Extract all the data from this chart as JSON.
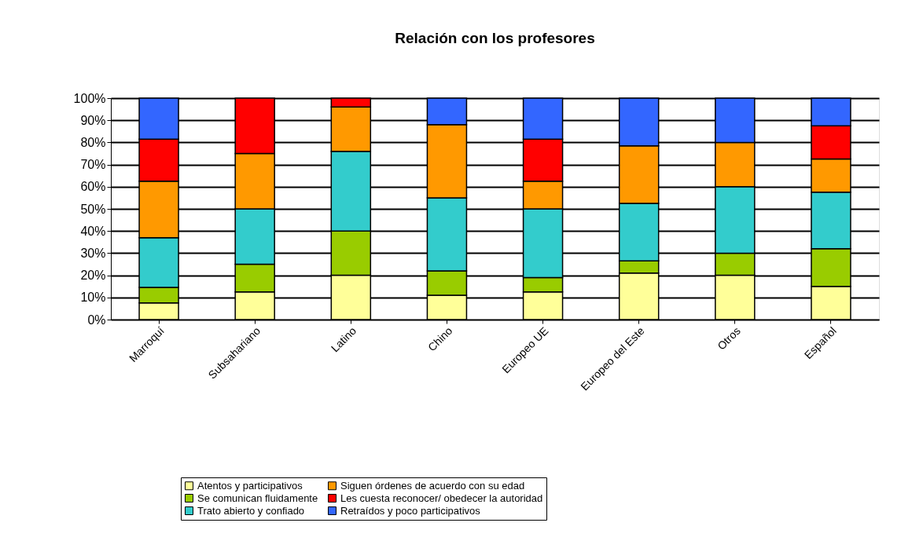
{
  "chart_data": {
    "type": "bar",
    "stacked": true,
    "title": "Relación con los profesores",
    "categories": [
      "Marroquí",
      "Subsahariano",
      "Latino",
      "Chino",
      "Europeo UE",
      "Europeo del Este",
      "Otros",
      "Español"
    ],
    "series": [
      {
        "name": "Atentos y participativos",
        "color": "#ffff99",
        "values": [
          7.5,
          12.5,
          20,
          11,
          12.5,
          21,
          20,
          15
        ]
      },
      {
        "name": "Se comunican fluidamente",
        "color": "#99cc00",
        "values": [
          7,
          12.5,
          20,
          11,
          6.5,
          5.5,
          10,
          17
        ]
      },
      {
        "name": "Trato abierto y confiado",
        "color": "#33cccc",
        "values": [
          22.5,
          25,
          36,
          33,
          31,
          26,
          30,
          25.5
        ]
      },
      {
        "name": "Siguen órdenes de acuerdo con su edad",
        "color": "#ff9900",
        "values": [
          25.5,
          25,
          20,
          33,
          12.5,
          26,
          20,
          15
        ]
      },
      {
        "name": "Les cuesta reconocer/ obedecer la autoridad",
        "color": "#ff0000",
        "values": [
          19,
          25,
          4,
          null,
          19,
          null,
          null,
          15
        ]
      },
      {
        "name": "Retraídos y poco participativos",
        "color": "#3366ff",
        "values": [
          18.5,
          null,
          null,
          12,
          18.5,
          21.5,
          20,
          12.5
        ]
      }
    ],
    "ylim": [
      0,
      100
    ],
    "yticks": [
      {
        "value": 0,
        "label": "0%"
      },
      {
        "value": 10,
        "label": "10%"
      },
      {
        "value": 20,
        "label": "20%"
      },
      {
        "value": 30,
        "label": "30%"
      },
      {
        "value": 40,
        "label": "40%"
      },
      {
        "value": 50,
        "label": "50%"
      },
      {
        "value": 60,
        "label": "60%"
      },
      {
        "value": 70,
        "label": "70%"
      },
      {
        "value": 80,
        "label": "80%"
      },
      {
        "value": 90,
        "label": "90%"
      },
      {
        "value": 100,
        "label": "100%"
      }
    ],
    "grid": "y",
    "legend": "bottom"
  }
}
